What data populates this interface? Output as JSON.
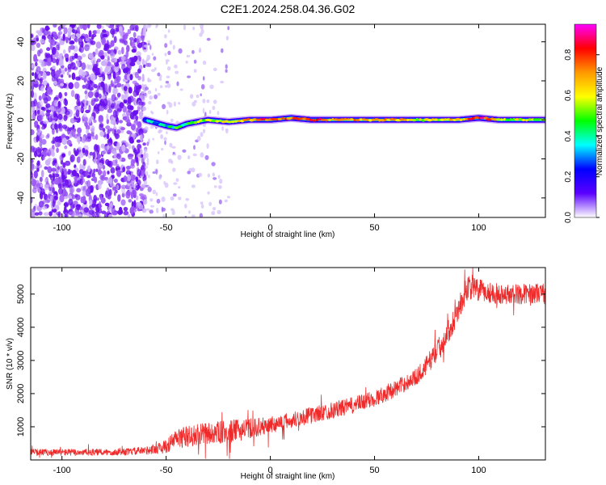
{
  "figure": {
    "title": "C2E1.2024.258.04.36.G02"
  },
  "chart_data": [
    {
      "type": "heatmap",
      "xlabel": "Height of straight line (km)",
      "ylabel": "Frequency (Hz)",
      "xlim": [
        -115,
        132
      ],
      "ylim": [
        -50,
        49
      ],
      "xticks": [
        -100,
        -50,
        0,
        50,
        100
      ],
      "yticks": [
        -40,
        -20,
        0,
        20,
        40
      ],
      "colorbar": {
        "label": "Normalized spectral amplitude",
        "range": [
          0.0,
          0.95
        ],
        "ticks": [
          0.0,
          0.2,
          0.4,
          0.6,
          0.8
        ],
        "colormap": [
          "#ffffff",
          "#5a00ff",
          "#0000ff",
          "#00ffff",
          "#00ff00",
          "#ffff00",
          "#ff9900",
          "#ff0000",
          "#ff00ff"
        ]
      },
      "noise_region": {
        "x_range": [
          -115,
          -60
        ],
        "freq_range": [
          -50,
          49
        ],
        "amplitude": 0.1
      },
      "sparse_noise_region": {
        "x_range": [
          -60,
          -20
        ],
        "amplitude": 0.05
      },
      "carrier_line": {
        "x": [
          -60,
          -50,
          -45,
          -40,
          -35,
          -30,
          -20,
          -10,
          0,
          10,
          20,
          30,
          40,
          50,
          60,
          70,
          80,
          90,
          100,
          110,
          120,
          132
        ],
        "freq": [
          0,
          -3,
          -4,
          -2,
          -1,
          0,
          -1,
          0,
          0,
          1,
          0,
          0,
          0,
          0,
          0,
          0,
          0,
          0,
          1,
          0,
          0,
          0
        ],
        "amplitude": [
          0.3,
          0.35,
          0.45,
          0.45,
          0.5,
          0.5,
          0.6,
          0.7,
          0.8,
          0.75,
          0.8,
          0.75,
          0.7,
          0.7,
          0.65,
          0.6,
          0.6,
          0.65,
          0.85,
          0.6,
          0.55,
          0.55
        ]
      }
    },
    {
      "type": "line",
      "xlabel": "Height of straight line (km)",
      "ylabel": "SNR (10 * v/v)",
      "xlim": [
        -115,
        132
      ],
      "ylim": [
        0,
        5800
      ],
      "xticks": [
        -100,
        -50,
        0,
        50,
        100
      ],
      "yticks": [
        1000,
        2000,
        3000,
        4000,
        5000
      ],
      "color": "#ee2a2a",
      "series": [
        {
          "x": [
            -115,
            -100,
            -90,
            -80,
            -70,
            -60,
            -50,
            -45,
            -40,
            -30,
            -20,
            -10,
            0,
            10,
            20,
            30,
            40,
            50,
            60,
            70,
            75,
            80,
            85,
            90,
            95,
            100,
            110,
            120,
            132
          ],
          "y": [
            230,
            230,
            230,
            230,
            240,
            280,
            400,
            650,
            700,
            800,
            850,
            950,
            1050,
            1200,
            1350,
            1500,
            1650,
            1850,
            2150,
            2500,
            2850,
            3300,
            3800,
            4500,
            5250,
            5100,
            5000,
            5000,
            5050
          ],
          "noise": [
            100,
            100,
            100,
            100,
            100,
            120,
            200,
            300,
            330,
            330,
            350,
            300,
            250,
            250,
            250,
            250,
            250,
            250,
            250,
            250,
            300,
            320,
            350,
            350,
            400,
            350,
            300,
            300,
            300
          ]
        }
      ]
    }
  ]
}
